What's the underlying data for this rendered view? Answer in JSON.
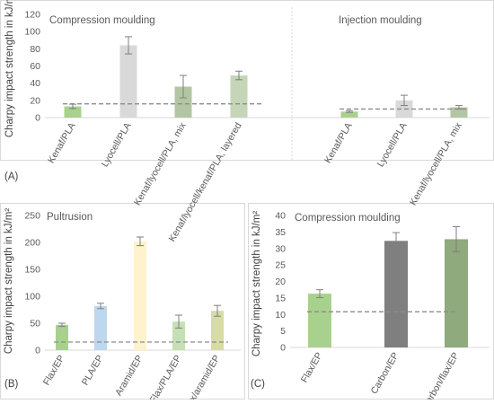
{
  "chart_data": [
    {
      "id": "A",
      "type": "bar",
      "panel_label": "(A)",
      "ylabel": "Charpy impact strength in kJ/m²",
      "ylim": [
        0,
        120
      ],
      "yticks": [
        "0",
        "20",
        "40",
        "60",
        "80",
        "100",
        "120"
      ],
      "grid": false,
      "groups": [
        {
          "title": "Compression moulding",
          "categories": [
            "Kenaf/PLA",
            "Lyocell/PLA",
            "Kenaf/lyocell/PLA, mix",
            "Kenaf/lyocell/kenaf/PLA, layered"
          ],
          "values": [
            13,
            84,
            36,
            49
          ],
          "errors": [
            2.5,
            10,
            13,
            5
          ],
          "colors": [
            "#a9d18e",
            "#d9d9d9",
            "#b3c6a3",
            "#c5d6b8"
          ],
          "reference": 16
        },
        {
          "title": "Injection moulding",
          "categories": [
            "Kenaf/PLA",
            "Lyocell/PLA",
            "Kenaf/lyocell/PLA, mix"
          ],
          "values": [
            7,
            20,
            12
          ],
          "errors": [
            1,
            6,
            2
          ],
          "colors": [
            "#a9d18e",
            "#d9d9d9",
            "#b3c6a3"
          ],
          "reference": 10
        }
      ]
    },
    {
      "id": "B",
      "type": "bar",
      "panel_label": "(B)",
      "title": "Pultrusion",
      "ylabel": "Charpy impact strength in kJ/m²",
      "ylim": [
        0,
        250
      ],
      "yticks": [
        "0",
        "50",
        "100",
        "150",
        "200",
        "250"
      ],
      "grid": false,
      "categories": [
        "Flax/EP",
        "PLA/EP",
        "Aramid/EP",
        "Flax/PLA/EP",
        "Flax/aramid/EP"
      ],
      "values": [
        47,
        82,
        202,
        53,
        73
      ],
      "errors": [
        3,
        5,
        8,
        12,
        10
      ],
      "colors": [
        "#a9d18e",
        "#bdd7ee",
        "#fff2cc",
        "#c5e0b4",
        "#d6dca4"
      ],
      "reference": 15
    },
    {
      "id": "C",
      "type": "bar",
      "panel_label": "(C)",
      "title": "Compression moulding",
      "ylabel": "Charpy impact strength in kJ/m²",
      "ylim": [
        0,
        40
      ],
      "yticks": [
        "0",
        "5",
        "10",
        "15",
        "20",
        "25",
        "30",
        "35",
        "40"
      ],
      "grid": false,
      "categories": [
        "Flax/EP",
        "Carbon/EP",
        "Carbon/flax/EP"
      ],
      "values": [
        16.3,
        32.3,
        32.8
      ],
      "errors": [
        1.2,
        2.5,
        3.8
      ],
      "colors": [
        "#a9d18e",
        "#7f7f7f",
        "#8faa7c"
      ],
      "reference": 10.8
    }
  ]
}
